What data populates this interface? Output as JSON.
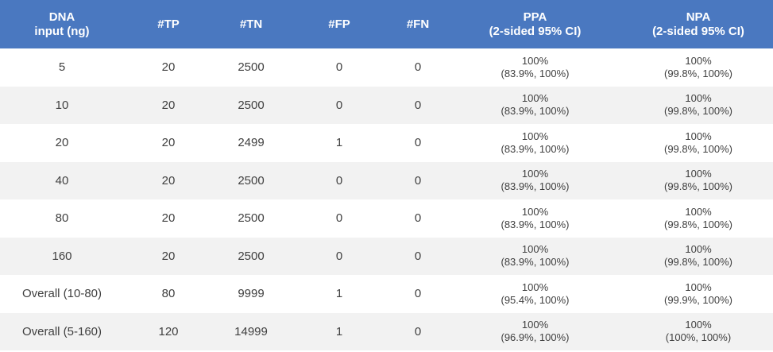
{
  "table": {
    "headers": [
      "DNA\ninput (ng)",
      "#TP",
      "#TN",
      "#FP",
      "#FN",
      "PPA\n(2-sided 95% CI)",
      "NPA\n(2-sided 95% CI)"
    ],
    "rows": [
      {
        "dna": "5",
        "tp": "20",
        "tn": "2500",
        "fp": "0",
        "fn": "0",
        "ppa": "100%",
        "ppa_ci": "(83.9%, 100%)",
        "npa": "100%",
        "npa_ci": "(99.8%, 100%)"
      },
      {
        "dna": "10",
        "tp": "20",
        "tn": "2500",
        "fp": "0",
        "fn": "0",
        "ppa": "100%",
        "ppa_ci": "(83.9%, 100%)",
        "npa": "100%",
        "npa_ci": "(99.8%, 100%)"
      },
      {
        "dna": "20",
        "tp": "20",
        "tn": "2499",
        "fp": "1",
        "fn": "0",
        "ppa": "100%",
        "ppa_ci": "(83.9%, 100%)",
        "npa": "100%",
        "npa_ci": "(99.8%, 100%)"
      },
      {
        "dna": "40",
        "tp": "20",
        "tn": "2500",
        "fp": "0",
        "fn": "0",
        "ppa": "100%",
        "ppa_ci": "(83.9%, 100%)",
        "npa": "100%",
        "npa_ci": "(99.8%, 100%)"
      },
      {
        "dna": "80",
        "tp": "20",
        "tn": "2500",
        "fp": "0",
        "fn": "0",
        "ppa": "100%",
        "ppa_ci": "(83.9%, 100%)",
        "npa": "100%",
        "npa_ci": "(99.8%, 100%)"
      },
      {
        "dna": "160",
        "tp": "20",
        "tn": "2500",
        "fp": "0",
        "fn": "0",
        "ppa": "100%",
        "ppa_ci": "(83.9%, 100%)",
        "npa": "100%",
        "npa_ci": "(99.8%, 100%)"
      },
      {
        "dna": "Overall (10-80)",
        "tp": "80",
        "tn": "9999",
        "fp": "1",
        "fn": "0",
        "ppa": "100%",
        "ppa_ci": "(95.4%, 100%)",
        "npa": "100%",
        "npa_ci": "(99.9%, 100%)"
      },
      {
        "dna": "Overall (5-160)",
        "tp": "120",
        "tn": "14999",
        "fp": "1",
        "fn": "0",
        "ppa": "100%",
        "ppa_ci": "(96.9%, 100%)",
        "npa": "100%",
        "npa_ci": "(100%, 100%)"
      }
    ]
  },
  "colors": {
    "header_bg": "#4a78c0",
    "header_text": "#ffffff",
    "row_alt_bg": "#f2f2f2",
    "row_bg": "#ffffff",
    "cell_text": "#404040"
  }
}
